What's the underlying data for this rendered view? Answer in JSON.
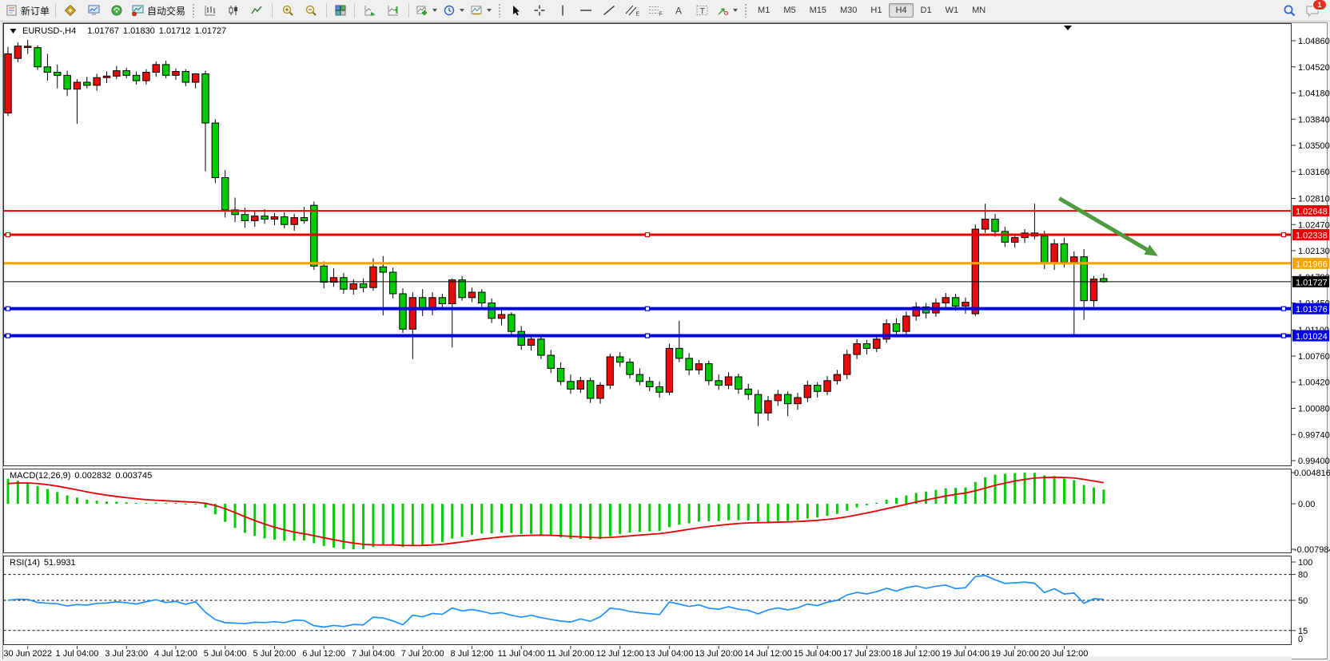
{
  "toolbar": {
    "new_order_label": "新订单",
    "auto_trading_label": "自动交易",
    "timeframes": [
      "M1",
      "M5",
      "M15",
      "M30",
      "H1",
      "H4",
      "D1",
      "W1",
      "MN"
    ],
    "active_timeframe": "H4",
    "notification_count": "1"
  },
  "chart_data": {
    "type": "candlestick",
    "symbol_period": "EURUSD-,H4",
    "ohlc": {
      "open": "1.01767",
      "high": "1.01830",
      "low": "1.01712",
      "close": "1.01727"
    },
    "up_color": "#e80c0c",
    "down_color": "#00cc00",
    "price_axis_ticks": [
      "1.04860",
      "1.04520",
      "1.04180",
      "1.03840",
      "1.03500",
      "1.03160",
      "1.02810",
      "1.02470",
      "1.02130",
      "1.01790",
      "1.01450",
      "1.01100",
      "1.00760",
      "1.00420",
      "1.00080",
      "0.99740",
      "0.99400"
    ],
    "time_axis_labels": [
      "30 Jun 2022",
      "1 Jul 04:00",
      "3 Jul 23:00",
      "4 Jul 12:00",
      "5 Jul 04:00",
      "5 Jul 20:00",
      "6 Jul 12:00",
      "7 Jul 04:00",
      "7 Jul 20:00",
      "8 Jul 12:00",
      "11 Jul 04:00",
      "11 Jul 20:00",
      "12 Jul 12:00",
      "13 Jul 04:00",
      "13 Jul 20:00",
      "14 Jul 12:00",
      "15 Jul 04:00",
      "17 Jul 23:00",
      "18 Jul 12:00",
      "19 Jul 04:00",
      "19 Jul 20:00",
      "20 Jul 12:00"
    ],
    "candles": [
      [
        1.0392,
        1.0478,
        1.0388,
        1.0469
      ],
      [
        1.0463,
        1.0484,
        1.0458,
        1.0479
      ],
      [
        1.0477,
        1.0487,
        1.0469,
        1.0478
      ],
      [
        1.0477,
        1.048,
        1.0448,
        1.0452
      ],
      [
        1.0452,
        1.0469,
        1.0434,
        1.0445
      ],
      [
        1.0445,
        1.0455,
        1.0424,
        1.0441
      ],
      [
        1.0441,
        1.0447,
        1.0414,
        1.0423
      ],
      [
        1.0423,
        1.0436,
        1.0378,
        1.0432
      ],
      [
        1.0432,
        1.0439,
        1.0424,
        1.0428
      ],
      [
        1.0428,
        1.0443,
        1.0421,
        1.0438
      ],
      [
        1.0438,
        1.0446,
        1.0431,
        1.044
      ],
      [
        1.044,
        1.0453,
        1.0436,
        1.0447
      ],
      [
        1.0447,
        1.0451,
        1.0437,
        1.0441
      ],
      [
        1.0441,
        1.0446,
        1.0429,
        1.0434
      ],
      [
        1.0434,
        1.0449,
        1.0429,
        1.0445
      ],
      [
        1.0445,
        1.0459,
        1.0439,
        1.0455
      ],
      [
        1.0455,
        1.046,
        1.0437,
        1.0441
      ],
      [
        1.0441,
        1.045,
        1.0435,
        1.0446
      ],
      [
        1.0446,
        1.0449,
        1.0427,
        1.0432
      ],
      [
        1.0432,
        1.0444,
        1.0424,
        1.0443
      ],
      [
        1.0443,
        1.0447,
        1.0316,
        1.0379
      ],
      [
        1.0379,
        1.0384,
        1.0301,
        1.0308
      ],
      [
        1.0308,
        1.0318,
        1.0256,
        1.0266
      ],
      [
        1.0266,
        1.0282,
        1.025,
        1.026
      ],
      [
        1.026,
        1.0269,
        1.0243,
        1.0252
      ],
      [
        1.0252,
        1.0264,
        1.0244,
        1.0258
      ],
      [
        1.0258,
        1.0267,
        1.0248,
        1.0254
      ],
      [
        1.0254,
        1.0262,
        1.0246,
        1.0257
      ],
      [
        1.0257,
        1.0263,
        1.0242,
        1.0247
      ],
      [
        1.0247,
        1.0261,
        1.0239,
        1.0256
      ],
      [
        1.0256,
        1.027,
        1.0248,
        1.0252
      ],
      [
        1.0272,
        1.0277,
        1.0188,
        1.0193
      ],
      [
        1.0193,
        1.0199,
        1.0164,
        1.0172
      ],
      [
        1.0172,
        1.019,
        1.0166,
        1.0178
      ],
      [
        1.0178,
        1.0184,
        1.0157,
        1.0163
      ],
      [
        1.0163,
        1.0176,
        1.0156,
        1.017
      ],
      [
        1.017,
        1.0177,
        1.0159,
        1.0165
      ],
      [
        1.0165,
        1.0203,
        1.0161,
        1.0192
      ],
      [
        1.0192,
        1.0206,
        1.0129,
        1.0185
      ],
      [
        1.0185,
        1.0191,
        1.0151,
        1.0157
      ],
      [
        1.0157,
        1.0164,
        1.0106,
        1.0111
      ],
      [
        1.0111,
        1.0159,
        1.0072,
        1.0152
      ],
      [
        1.0152,
        1.0163,
        1.0128,
        1.0136
      ],
      [
        1.0136,
        1.0159,
        1.0129,
        1.0152
      ],
      [
        1.0152,
        1.0157,
        1.0139,
        1.0144
      ],
      [
        1.0144,
        1.0177,
        1.0087,
        1.0175
      ],
      [
        1.0175,
        1.018,
        1.0148,
        1.0152
      ],
      [
        1.0152,
        1.0165,
        1.0146,
        1.0159
      ],
      [
        1.0159,
        1.0163,
        1.014,
        1.0145
      ],
      [
        1.0145,
        1.0151,
        1.0119,
        1.0125
      ],
      [
        1.0125,
        1.0136,
        1.0116,
        1.013
      ],
      [
        1.013,
        1.0133,
        1.0102,
        1.0108
      ],
      [
        1.0108,
        1.0115,
        1.0084,
        1.009
      ],
      [
        1.009,
        1.0104,
        1.0083,
        1.0098
      ],
      [
        1.0098,
        1.0101,
        1.0072,
        1.0077
      ],
      [
        1.0077,
        1.0084,
        1.0054,
        1.006
      ],
      [
        1.006,
        1.0068,
        1.0038,
        1.0043
      ],
      [
        1.0043,
        1.0052,
        1.0027,
        1.0033
      ],
      [
        1.0033,
        1.0049,
        1.0028,
        1.0044
      ],
      [
        1.0044,
        1.0048,
        1.0015,
        1.0021
      ],
      [
        1.0021,
        1.0042,
        1.0014,
        1.0038
      ],
      [
        1.0038,
        1.0079,
        1.0033,
        1.0075
      ],
      [
        1.0075,
        1.0081,
        1.0062,
        1.0068
      ],
      [
        1.0068,
        1.0073,
        1.0047,
        1.0052
      ],
      [
        1.0052,
        1.006,
        1.0038,
        1.0043
      ],
      [
        1.0043,
        1.0049,
        1.003,
        1.0036
      ],
      [
        1.0036,
        1.0043,
        1.0022,
        1.0029
      ],
      [
        1.0029,
        1.0092,
        1.0025,
        1.0086
      ],
      [
        1.0086,
        1.0122,
        1.0068,
        1.0073
      ],
      [
        1.0073,
        1.008,
        1.0051,
        1.0058
      ],
      [
        1.0058,
        1.0071,
        1.0052,
        1.0066
      ],
      [
        1.0066,
        1.007,
        1.0038,
        1.0044
      ],
      [
        1.0044,
        1.0052,
        1.0032,
        1.0038
      ],
      [
        1.0038,
        1.0055,
        1.0033,
        1.0049
      ],
      [
        1.0049,
        1.0053,
        1.0027,
        1.0033
      ],
      [
        1.0033,
        1.004,
        1.0019,
        1.0026
      ],
      [
        1.0026,
        1.0032,
        0.9985,
        1.0002
      ],
      [
        1.0002,
        1.0024,
        0.9992,
        1.0018
      ],
      [
        1.0018,
        1.0032,
        1.0011,
        1.0026
      ],
      [
        1.0026,
        1.003,
        0.9998,
        1.0014
      ],
      [
        1.0014,
        1.0028,
        1.0006,
        1.0022
      ],
      [
        1.0022,
        1.0044,
        1.0016,
        1.0038
      ],
      [
        1.0038,
        1.0042,
        1.0022,
        1.003
      ],
      [
        1.003,
        1.005,
        1.0025,
        1.0044
      ],
      [
        1.0044,
        1.0058,
        1.0039,
        1.0052
      ],
      [
        1.0052,
        1.0084,
        1.0046,
        1.0078
      ],
      [
        1.0078,
        1.0098,
        1.0072,
        1.0092
      ],
      [
        1.0092,
        1.0097,
        1.0078,
        1.0086
      ],
      [
        1.0086,
        1.0104,
        1.0081,
        1.0098
      ],
      [
        1.0098,
        1.0124,
        1.0093,
        1.0118
      ],
      [
        1.0118,
        1.0125,
        1.0101,
        1.0108
      ],
      [
        1.0108,
        1.0134,
        1.0103,
        1.0128
      ],
      [
        1.0128,
        1.0146,
        1.0122,
        1.014
      ],
      [
        1.014,
        1.0145,
        1.0125,
        1.0132
      ],
      [
        1.0132,
        1.0151,
        1.0127,
        1.0145
      ],
      [
        1.0145,
        1.0158,
        1.0138,
        1.0152
      ],
      [
        1.0152,
        1.0157,
        1.0135,
        1.0141
      ],
      [
        1.0141,
        1.0152,
        1.0131,
        1.0146
      ],
      [
        1.0131,
        1.0247,
        1.0128,
        1.0241
      ],
      [
        1.0241,
        1.0274,
        1.0236,
        1.0254
      ],
      [
        1.0254,
        1.0261,
        1.0231,
        1.0238
      ],
      [
        1.0238,
        1.0244,
        1.0218,
        1.0224
      ],
      [
        1.0224,
        1.0235,
        1.0217,
        1.023
      ],
      [
        1.023,
        1.0241,
        1.0223,
        1.0236
      ],
      [
        1.0236,
        1.0274,
        1.0228,
        1.0232
      ],
      [
        1.0232,
        1.0239,
        1.0189,
        1.0196
      ],
      [
        1.0196,
        1.0228,
        1.0188,
        1.0222
      ],
      [
        1.0222,
        1.023,
        1.0191,
        1.0198
      ],
      [
        1.0198,
        1.0212,
        1.0103,
        1.0205
      ],
      [
        1.0205,
        1.0215,
        1.0123,
        1.0148
      ],
      [
        1.0148,
        1.018,
        1.014,
        1.0176
      ],
      [
        1.01767,
        1.0183,
        1.01712,
        1.01727
      ]
    ],
    "hlines": [
      {
        "label": "1.02648",
        "price": 1.02648,
        "color": "#e80000",
        "width": 2,
        "handles": false
      },
      {
        "label": "1.02338",
        "price": 1.02338,
        "color": "#e80000",
        "width": 3,
        "handles": true
      },
      {
        "label": "1.01966",
        "price": 1.01966,
        "color": "#f5a300",
        "width": 3,
        "handles": false
      },
      {
        "label": "1.01727",
        "price": 1.01727,
        "color": "#000000",
        "width": 1,
        "handles": false,
        "is_price_line": true
      },
      {
        "label": "1.01376",
        "price": 1.01376,
        "color": "#0000e8",
        "width": 4,
        "handles": true
      },
      {
        "label": "1.01024",
        "price": 1.01024,
        "color": "#0000e8",
        "width": 4,
        "handles": true
      }
    ],
    "trend_arrow": {
      "color": "#4e9b3e",
      "from": {
        "bar": 106.5,
        "price": 1.0281
      },
      "to": {
        "bar": 116.5,
        "price": 1.0206
      }
    },
    "macd": {
      "label": "MACD(12,26,9)",
      "value_main": "0.002832",
      "value_signal": "0.003745",
      "axis_max_label": "0.004816",
      "axis_zero_label": "0.00",
      "axis_min_label": "-0.007984",
      "histogram_color": "#00cc00",
      "signal_color": "#e80000"
    },
    "rsi": {
      "label": "RSI(14)",
      "value": "51.9931",
      "levels": [
        80,
        50,
        15
      ],
      "axis_labels": [
        "100",
        "80",
        "50",
        "15",
        "0"
      ],
      "line_color": "#1e90ff"
    }
  }
}
